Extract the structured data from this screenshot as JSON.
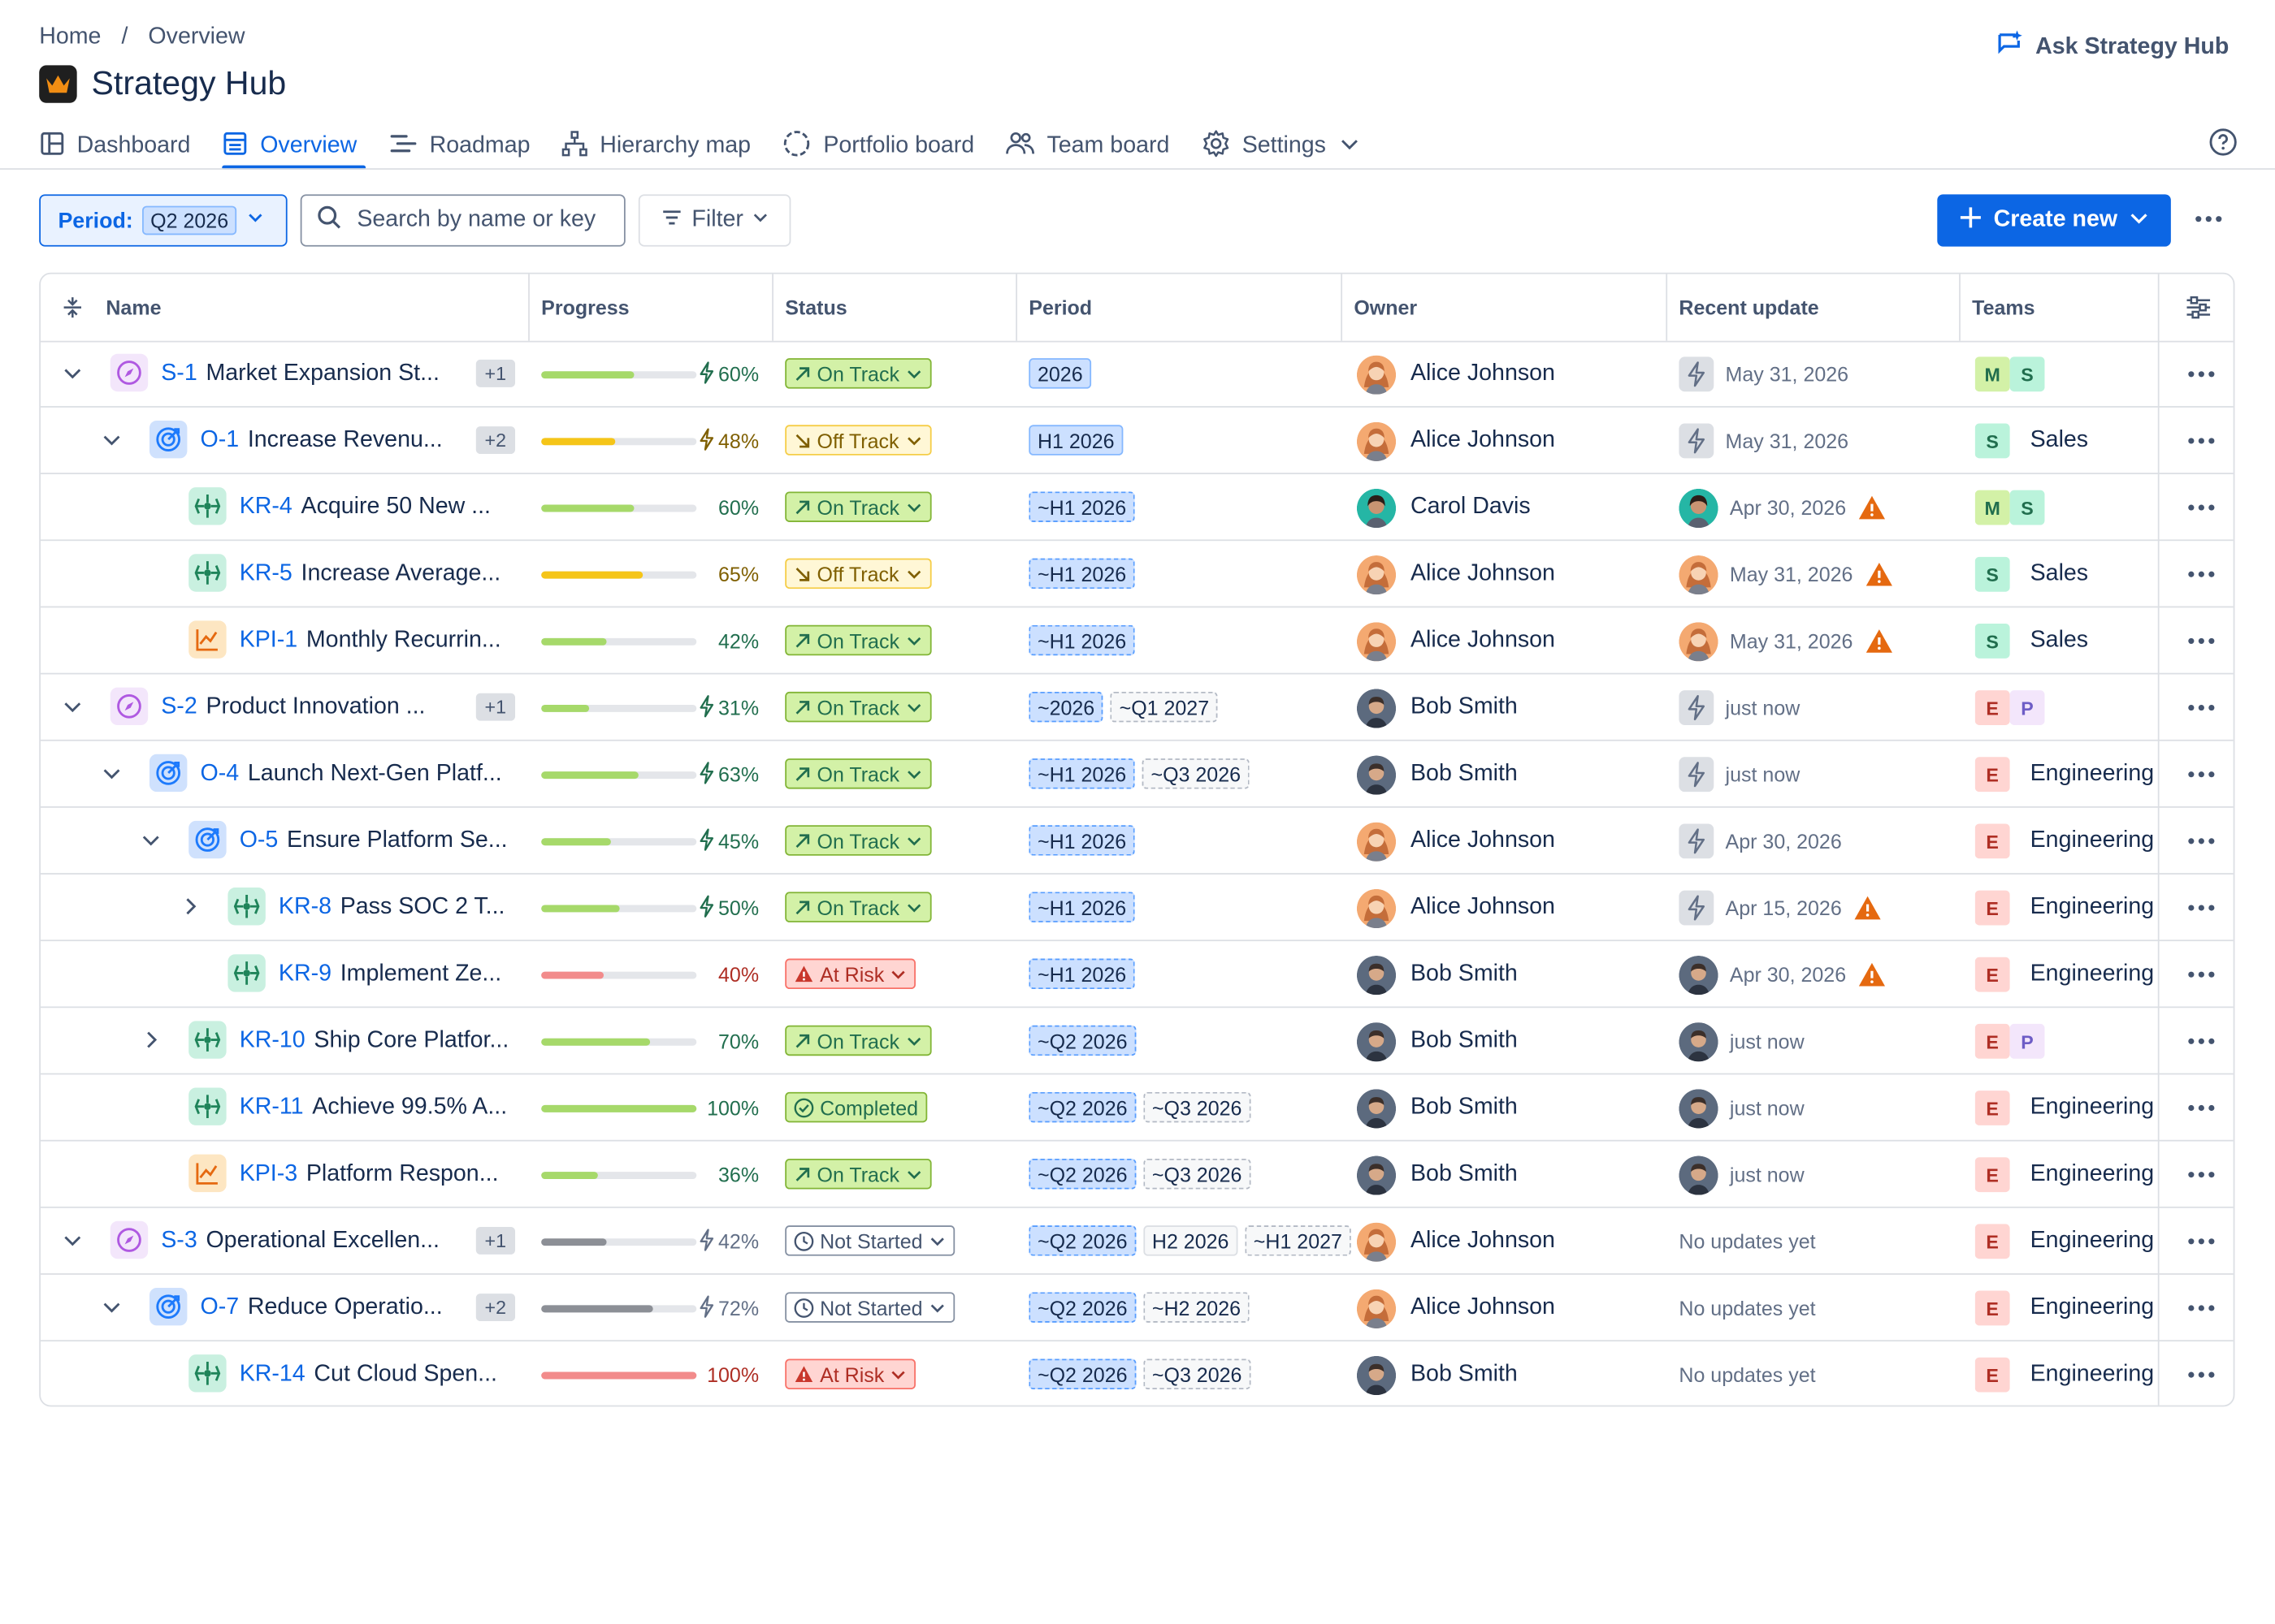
{
  "breadcrumb": {
    "home": "Home",
    "sep": "/",
    "current": "Overview"
  },
  "app": {
    "title": "Strategy Hub",
    "ask": "Ask Strategy Hub"
  },
  "tabs": [
    {
      "label": "Dashboard",
      "icon": "dashboard-icon"
    },
    {
      "label": "Overview",
      "icon": "list-icon",
      "active": true
    },
    {
      "label": "Roadmap",
      "icon": "roadmap-icon"
    },
    {
      "label": "Hierarchy map",
      "icon": "hierarchy-icon"
    },
    {
      "label": "Portfolio board",
      "icon": "portfolio-icon"
    },
    {
      "label": "Team board",
      "icon": "team-icon"
    },
    {
      "label": "Settings",
      "icon": "gear-icon"
    }
  ],
  "toolbar": {
    "period_label": "Period:",
    "period_value": "Q2 2026",
    "search_placeholder": "Search by name or key",
    "filter_label": "Filter",
    "create_label": "Create new"
  },
  "columns": [
    "Name",
    "Progress",
    "Status",
    "Period",
    "Owner",
    "Recent update",
    "Teams"
  ],
  "colors": {
    "accent": "#0c66e4",
    "progress_green": "#a6d96a",
    "progress_yellow": "#f5c518",
    "progress_red": "#f28b8b",
    "progress_grey": "#8c8f96"
  },
  "rows": [
    {
      "key": "S-1",
      "name": "Market Expansion St...",
      "type": "strategy",
      "indent": 0,
      "chevron": "down",
      "extra": "+1",
      "progress": 60,
      "bolt": true,
      "bar": "green",
      "status": "On Track",
      "periods": [
        {
          "t": "2026",
          "s": "solid"
        }
      ],
      "owner": "Alice Johnson",
      "avatar": "alice",
      "update": "May 31, 2026",
      "update_icon": "bolt",
      "warn": false,
      "teams": [
        "M",
        "S"
      ],
      "team_name": ""
    },
    {
      "key": "O-1",
      "name": "Increase Revenu...",
      "type": "objective",
      "indent": 1,
      "chevron": "down",
      "extra": "+2",
      "progress": 48,
      "bolt": true,
      "bar": "yellow",
      "status": "Off Track",
      "periods": [
        {
          "t": "H1 2026",
          "s": "solid"
        }
      ],
      "owner": "Alice Johnson",
      "avatar": "alice",
      "update": "May 31, 2026",
      "update_icon": "bolt",
      "warn": false,
      "teams": [
        "S"
      ],
      "team_name": "Sales"
    },
    {
      "key": "KR-4",
      "name": "Acquire 50 New ...",
      "type": "kr",
      "indent": 2,
      "chevron": "",
      "extra": "",
      "progress": 60,
      "bolt": false,
      "bar": "green",
      "status": "On Track",
      "periods": [
        {
          "t": "~H1 2026",
          "s": "dashed-blue"
        }
      ],
      "owner": "Carol Davis",
      "avatar": "carol",
      "update": "Apr 30, 2026",
      "update_icon": "carol",
      "warn": true,
      "teams": [
        "M",
        "S"
      ],
      "team_name": ""
    },
    {
      "key": "KR-5",
      "name": "Increase Average...",
      "type": "kr",
      "indent": 2,
      "chevron": "",
      "extra": "",
      "progress": 65,
      "bolt": false,
      "bar": "yellow",
      "status": "Off Track",
      "periods": [
        {
          "t": "~H1 2026",
          "s": "dashed-blue"
        }
      ],
      "owner": "Alice Johnson",
      "avatar": "alice",
      "update": "May 31, 2026",
      "update_icon": "alice",
      "warn": true,
      "teams": [
        "S"
      ],
      "team_name": "Sales"
    },
    {
      "key": "KPI-1",
      "name": "Monthly Recurrin...",
      "type": "kpi",
      "indent": 2,
      "chevron": "",
      "extra": "",
      "progress": 42,
      "bolt": false,
      "bar": "green",
      "status": "On Track",
      "periods": [
        {
          "t": "~H1 2026",
          "s": "dashed-blue"
        }
      ],
      "owner": "Alice Johnson",
      "avatar": "alice",
      "update": "May 31, 2026",
      "update_icon": "alice",
      "warn": true,
      "teams": [
        "S"
      ],
      "team_name": "Sales"
    },
    {
      "key": "S-2",
      "name": "Product Innovation ...",
      "type": "strategy",
      "indent": 0,
      "chevron": "down",
      "extra": "+1",
      "progress": 31,
      "bolt": true,
      "bar": "green",
      "status": "On Track",
      "periods": [
        {
          "t": "~2026",
          "s": "dashed-blue"
        },
        {
          "t": "~Q1 2027",
          "s": "dashed-grey"
        }
      ],
      "owner": "Bob Smith",
      "avatar": "bob",
      "update": "just now",
      "update_icon": "bolt",
      "warn": false,
      "teams": [
        "E",
        "P"
      ],
      "team_name": ""
    },
    {
      "key": "O-4",
      "name": "Launch Next-Gen Platf...",
      "type": "objective",
      "indent": 1,
      "chevron": "down",
      "extra": "",
      "progress": 63,
      "bolt": true,
      "bar": "green",
      "status": "On Track",
      "periods": [
        {
          "t": "~H1 2026",
          "s": "dashed-blue"
        },
        {
          "t": "~Q3 2026",
          "s": "dashed-grey"
        }
      ],
      "owner": "Bob Smith",
      "avatar": "bob",
      "update": "just now",
      "update_icon": "bolt",
      "warn": false,
      "teams": [
        "E"
      ],
      "team_name": "Engineering"
    },
    {
      "key": "O-5",
      "name": "Ensure Platform Se...",
      "type": "objective",
      "indent": 2,
      "chevron": "down",
      "extra": "",
      "progress": 45,
      "bolt": true,
      "bar": "green",
      "status": "On Track",
      "periods": [
        {
          "t": "~H1 2026",
          "s": "dashed-blue"
        }
      ],
      "owner": "Alice Johnson",
      "avatar": "alice",
      "update": "Apr 30, 2026",
      "update_icon": "bolt",
      "warn": false,
      "teams": [
        "E"
      ],
      "team_name": "Engineering"
    },
    {
      "key": "KR-8",
      "name": "Pass SOC 2 T...",
      "type": "kr",
      "indent": 3,
      "chevron": "right",
      "extra": "",
      "progress": 50,
      "bolt": true,
      "bar": "green",
      "status": "On Track",
      "periods": [
        {
          "t": "~H1 2026",
          "s": "dashed-blue"
        }
      ],
      "owner": "Alice Johnson",
      "avatar": "alice",
      "update": "Apr 15, 2026",
      "update_icon": "bolt",
      "warn": true,
      "teams": [
        "E"
      ],
      "team_name": "Engineering"
    },
    {
      "key": "KR-9",
      "name": "Implement Ze...",
      "type": "kr",
      "indent": 3,
      "chevron": "",
      "extra": "",
      "progress": 40,
      "bolt": false,
      "bar": "red",
      "status": "At Risk",
      "periods": [
        {
          "t": "~H1 2026",
          "s": "dashed-blue"
        }
      ],
      "owner": "Bob Smith",
      "avatar": "bob",
      "update": "Apr 30, 2026",
      "update_icon": "bob",
      "warn": true,
      "teams": [
        "E"
      ],
      "team_name": "Engineering"
    },
    {
      "key": "KR-10",
      "name": "Ship Core Platfor...",
      "type": "kr",
      "indent": 2,
      "chevron": "right",
      "extra": "",
      "progress": 70,
      "bolt": false,
      "bar": "green",
      "status": "On Track",
      "periods": [
        {
          "t": "~Q2 2026",
          "s": "dashed-blue"
        }
      ],
      "owner": "Bob Smith",
      "avatar": "bob",
      "update": "just now",
      "update_icon": "bob",
      "warn": false,
      "teams": [
        "E",
        "P"
      ],
      "team_name": ""
    },
    {
      "key": "KR-11",
      "name": "Achieve 99.5% A...",
      "type": "kr",
      "indent": 2,
      "chevron": "",
      "extra": "",
      "progress": 100,
      "bolt": false,
      "bar": "green",
      "status": "Completed",
      "periods": [
        {
          "t": "~Q2 2026",
          "s": "dashed-blue"
        },
        {
          "t": "~Q3 2026",
          "s": "dashed-grey"
        }
      ],
      "owner": "Bob Smith",
      "avatar": "bob",
      "update": "just now",
      "update_icon": "bob",
      "warn": false,
      "teams": [
        "E"
      ],
      "team_name": "Engineering"
    },
    {
      "key": "KPI-3",
      "name": "Platform Respon...",
      "type": "kpi",
      "indent": 2,
      "chevron": "",
      "extra": "",
      "progress": 36,
      "bolt": false,
      "bar": "green",
      "status": "On Track",
      "periods": [
        {
          "t": "~Q2 2026",
          "s": "dashed-blue"
        },
        {
          "t": "~Q3 2026",
          "s": "dashed-grey"
        }
      ],
      "owner": "Bob Smith",
      "avatar": "bob",
      "update": "just now",
      "update_icon": "bob",
      "warn": false,
      "teams": [
        "E"
      ],
      "team_name": "Engineering"
    },
    {
      "key": "S-3",
      "name": "Operational Excellen...",
      "type": "strategy",
      "indent": 0,
      "chevron": "down",
      "extra": "+1",
      "progress": 42,
      "bolt": true,
      "bar": "grey",
      "status": "Not Started",
      "periods": [
        {
          "t": "~Q2 2026",
          "s": "dashed-blue"
        },
        {
          "t": "H2 2026",
          "s": "plain"
        },
        {
          "t": "~H1 2027",
          "s": "dashed-grey"
        }
      ],
      "owner": "Alice Johnson",
      "avatar": "alice",
      "update": "No updates yet",
      "update_icon": "",
      "warn": false,
      "teams": [
        "E"
      ],
      "team_name": "Engineering"
    },
    {
      "key": "O-7",
      "name": "Reduce Operatio...",
      "type": "objective",
      "indent": 1,
      "chevron": "down",
      "extra": "+2",
      "progress": 72,
      "bolt": true,
      "bar": "grey",
      "status": "Not Started",
      "periods": [
        {
          "t": "~Q2 2026",
          "s": "dashed-blue"
        },
        {
          "t": "~H2 2026",
          "s": "dashed-grey"
        }
      ],
      "owner": "Alice Johnson",
      "avatar": "alice",
      "update": "No updates yet",
      "update_icon": "",
      "warn": false,
      "teams": [
        "E"
      ],
      "team_name": "Engineering"
    },
    {
      "key": "KR-14",
      "name": "Cut Cloud Spen...",
      "type": "kr",
      "indent": 2,
      "chevron": "",
      "extra": "",
      "progress": 100,
      "bolt": false,
      "bar": "red",
      "status": "At Risk",
      "periods": [
        {
          "t": "~Q2 2026",
          "s": "dashed-blue"
        },
        {
          "t": "~Q3 2026",
          "s": "dashed-grey"
        }
      ],
      "owner": "Bob Smith",
      "avatar": "bob",
      "update": "No updates yet",
      "update_icon": "",
      "warn": false,
      "teams": [
        "E"
      ],
      "team_name": "Engineering"
    }
  ]
}
